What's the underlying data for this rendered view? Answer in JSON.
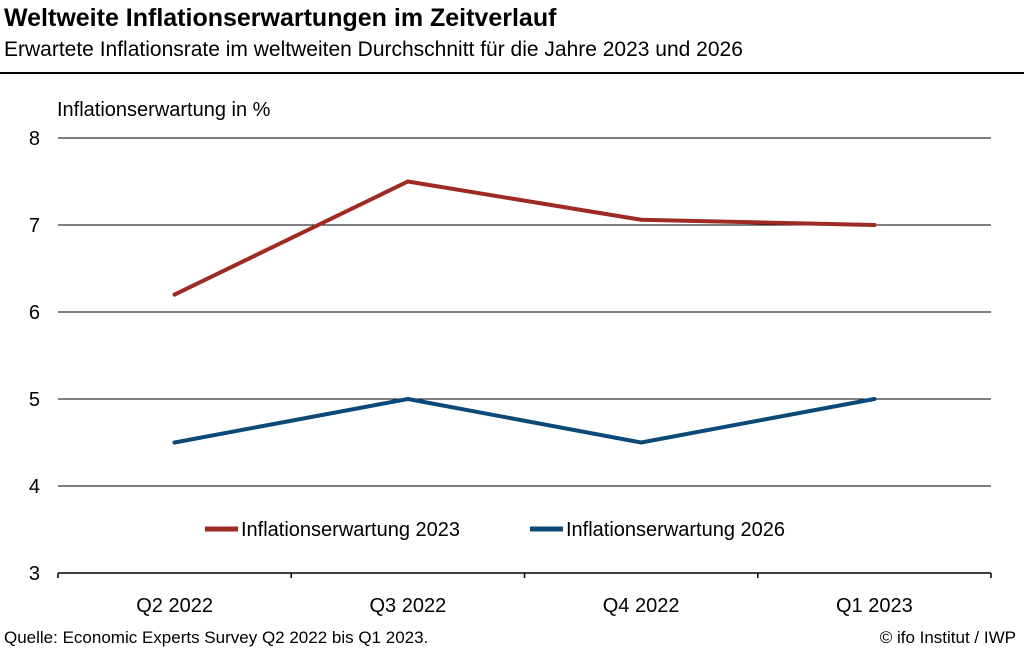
{
  "header": {
    "title": "Weltweite Inflationserwartungen im Zeitverlauf",
    "subtitle": "Erwartete Inflationsrate im weltweiten Durchschnitt für die Jahre 2023 und 2026"
  },
  "footer": {
    "source": "Quelle: Economic Experts Survey Q2 2022 bis Q1 2023.",
    "copyright": "© ifo Institut / IWP"
  },
  "chart_data": {
    "type": "line",
    "ylabel": "Inflationserwartung in %",
    "xlabel": "",
    "categories": [
      "Q2 2022",
      "Q3 2022",
      "Q4 2022",
      "Q1 2023"
    ],
    "ylim": [
      3,
      8
    ],
    "yticks": [
      3,
      4,
      5,
      6,
      7,
      8
    ],
    "grid": true,
    "legend_position": "bottom",
    "series": [
      {
        "name": "Inflationserwartung 2023",
        "color": "#9e2a23",
        "values": [
          6.2,
          7.5,
          7.06,
          7.0
        ]
      },
      {
        "name": "Inflationserwartung 2026",
        "color": "#0b4a78",
        "values": [
          4.5,
          5.0,
          4.5,
          5.0
        ]
      }
    ]
  }
}
